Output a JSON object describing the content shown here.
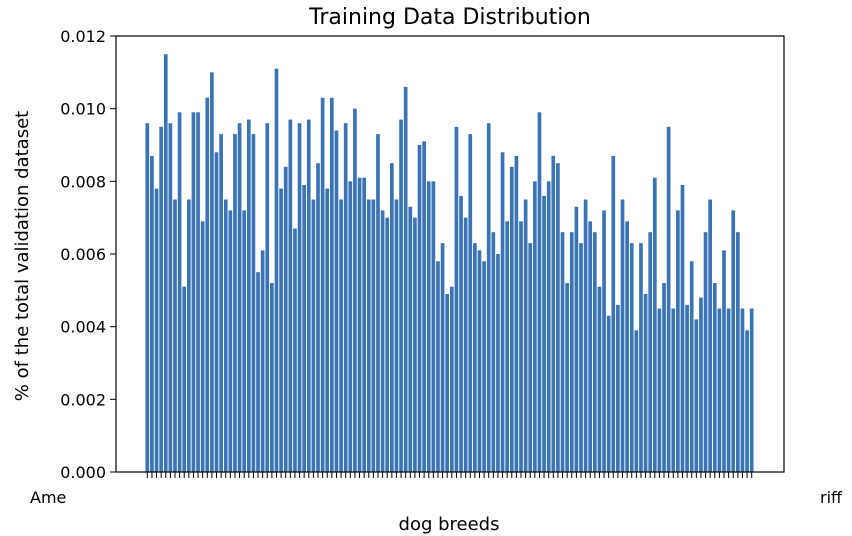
{
  "chart_data": {
    "type": "bar",
    "title": "Training Data Distribution",
    "xlabel": "dog breeds",
    "ylabel": "% of the total validation dataset",
    "ylim": [
      0,
      0.012
    ],
    "yticks": [
      "0.000",
      "0.002",
      "0.004",
      "0.006",
      "0.008",
      "0.010",
      "0.012"
    ],
    "ytick_values": [
      0,
      0.002,
      0.004,
      0.006,
      0.008,
      0.01,
      0.012
    ],
    "grid": false,
    "bar_color": "#3a74b4",
    "first_category_partial": "Ame",
    "last_category_partial": "riff",
    "values": [
      0.0096,
      0.0087,
      0.0078,
      0.0095,
      0.0115,
      0.0096,
      0.0075,
      0.0099,
      0.0051,
      0.0075,
      0.0099,
      0.0099,
      0.0069,
      0.0103,
      0.011,
      0.0088,
      0.0093,
      0.0075,
      0.0072,
      0.0093,
      0.0096,
      0.0072,
      0.0097,
      0.0093,
      0.0055,
      0.0061,
      0.0096,
      0.0052,
      0.0111,
      0.0078,
      0.0084,
      0.0097,
      0.0067,
      0.0096,
      0.0079,
      0.0097,
      0.0075,
      0.0085,
      0.0103,
      0.0078,
      0.0103,
      0.0094,
      0.0075,
      0.0096,
      0.008,
      0.01,
      0.0081,
      0.0081,
      0.0075,
      0.0075,
      0.0093,
      0.0072,
      0.007,
      0.0085,
      0.0075,
      0.0097,
      0.0106,
      0.0073,
      0.007,
      0.009,
      0.0091,
      0.008,
      0.008,
      0.0058,
      0.0063,
      0.0049,
      0.0051,
      0.0095,
      0.0076,
      0.007,
      0.0093,
      0.0063,
      0.0061,
      0.0058,
      0.0096,
      0.0066,
      0.006,
      0.0088,
      0.0069,
      0.0084,
      0.0087,
      0.0069,
      0.0075,
      0.0063,
      0.008,
      0.0099,
      0.0076,
      0.008,
      0.0087,
      0.0085,
      0.0066,
      0.0052,
      0.0066,
      0.0073,
      0.0063,
      0.0075,
      0.0069,
      0.0066,
      0.0051,
      0.0072,
      0.0043,
      0.0087,
      0.0046,
      0.0075,
      0.0069,
      0.0063,
      0.0039,
      0.0063,
      0.0049,
      0.0066,
      0.0081,
      0.0045,
      0.0052,
      0.0095,
      0.0045,
      0.0072,
      0.0079,
      0.0046,
      0.0058,
      0.0042,
      0.0048,
      0.0066,
      0.0075,
      0.0052,
      0.0045,
      0.0061,
      0.0045,
      0.0072,
      0.0066,
      0.0045,
      0.0039,
      0.0045
    ]
  }
}
